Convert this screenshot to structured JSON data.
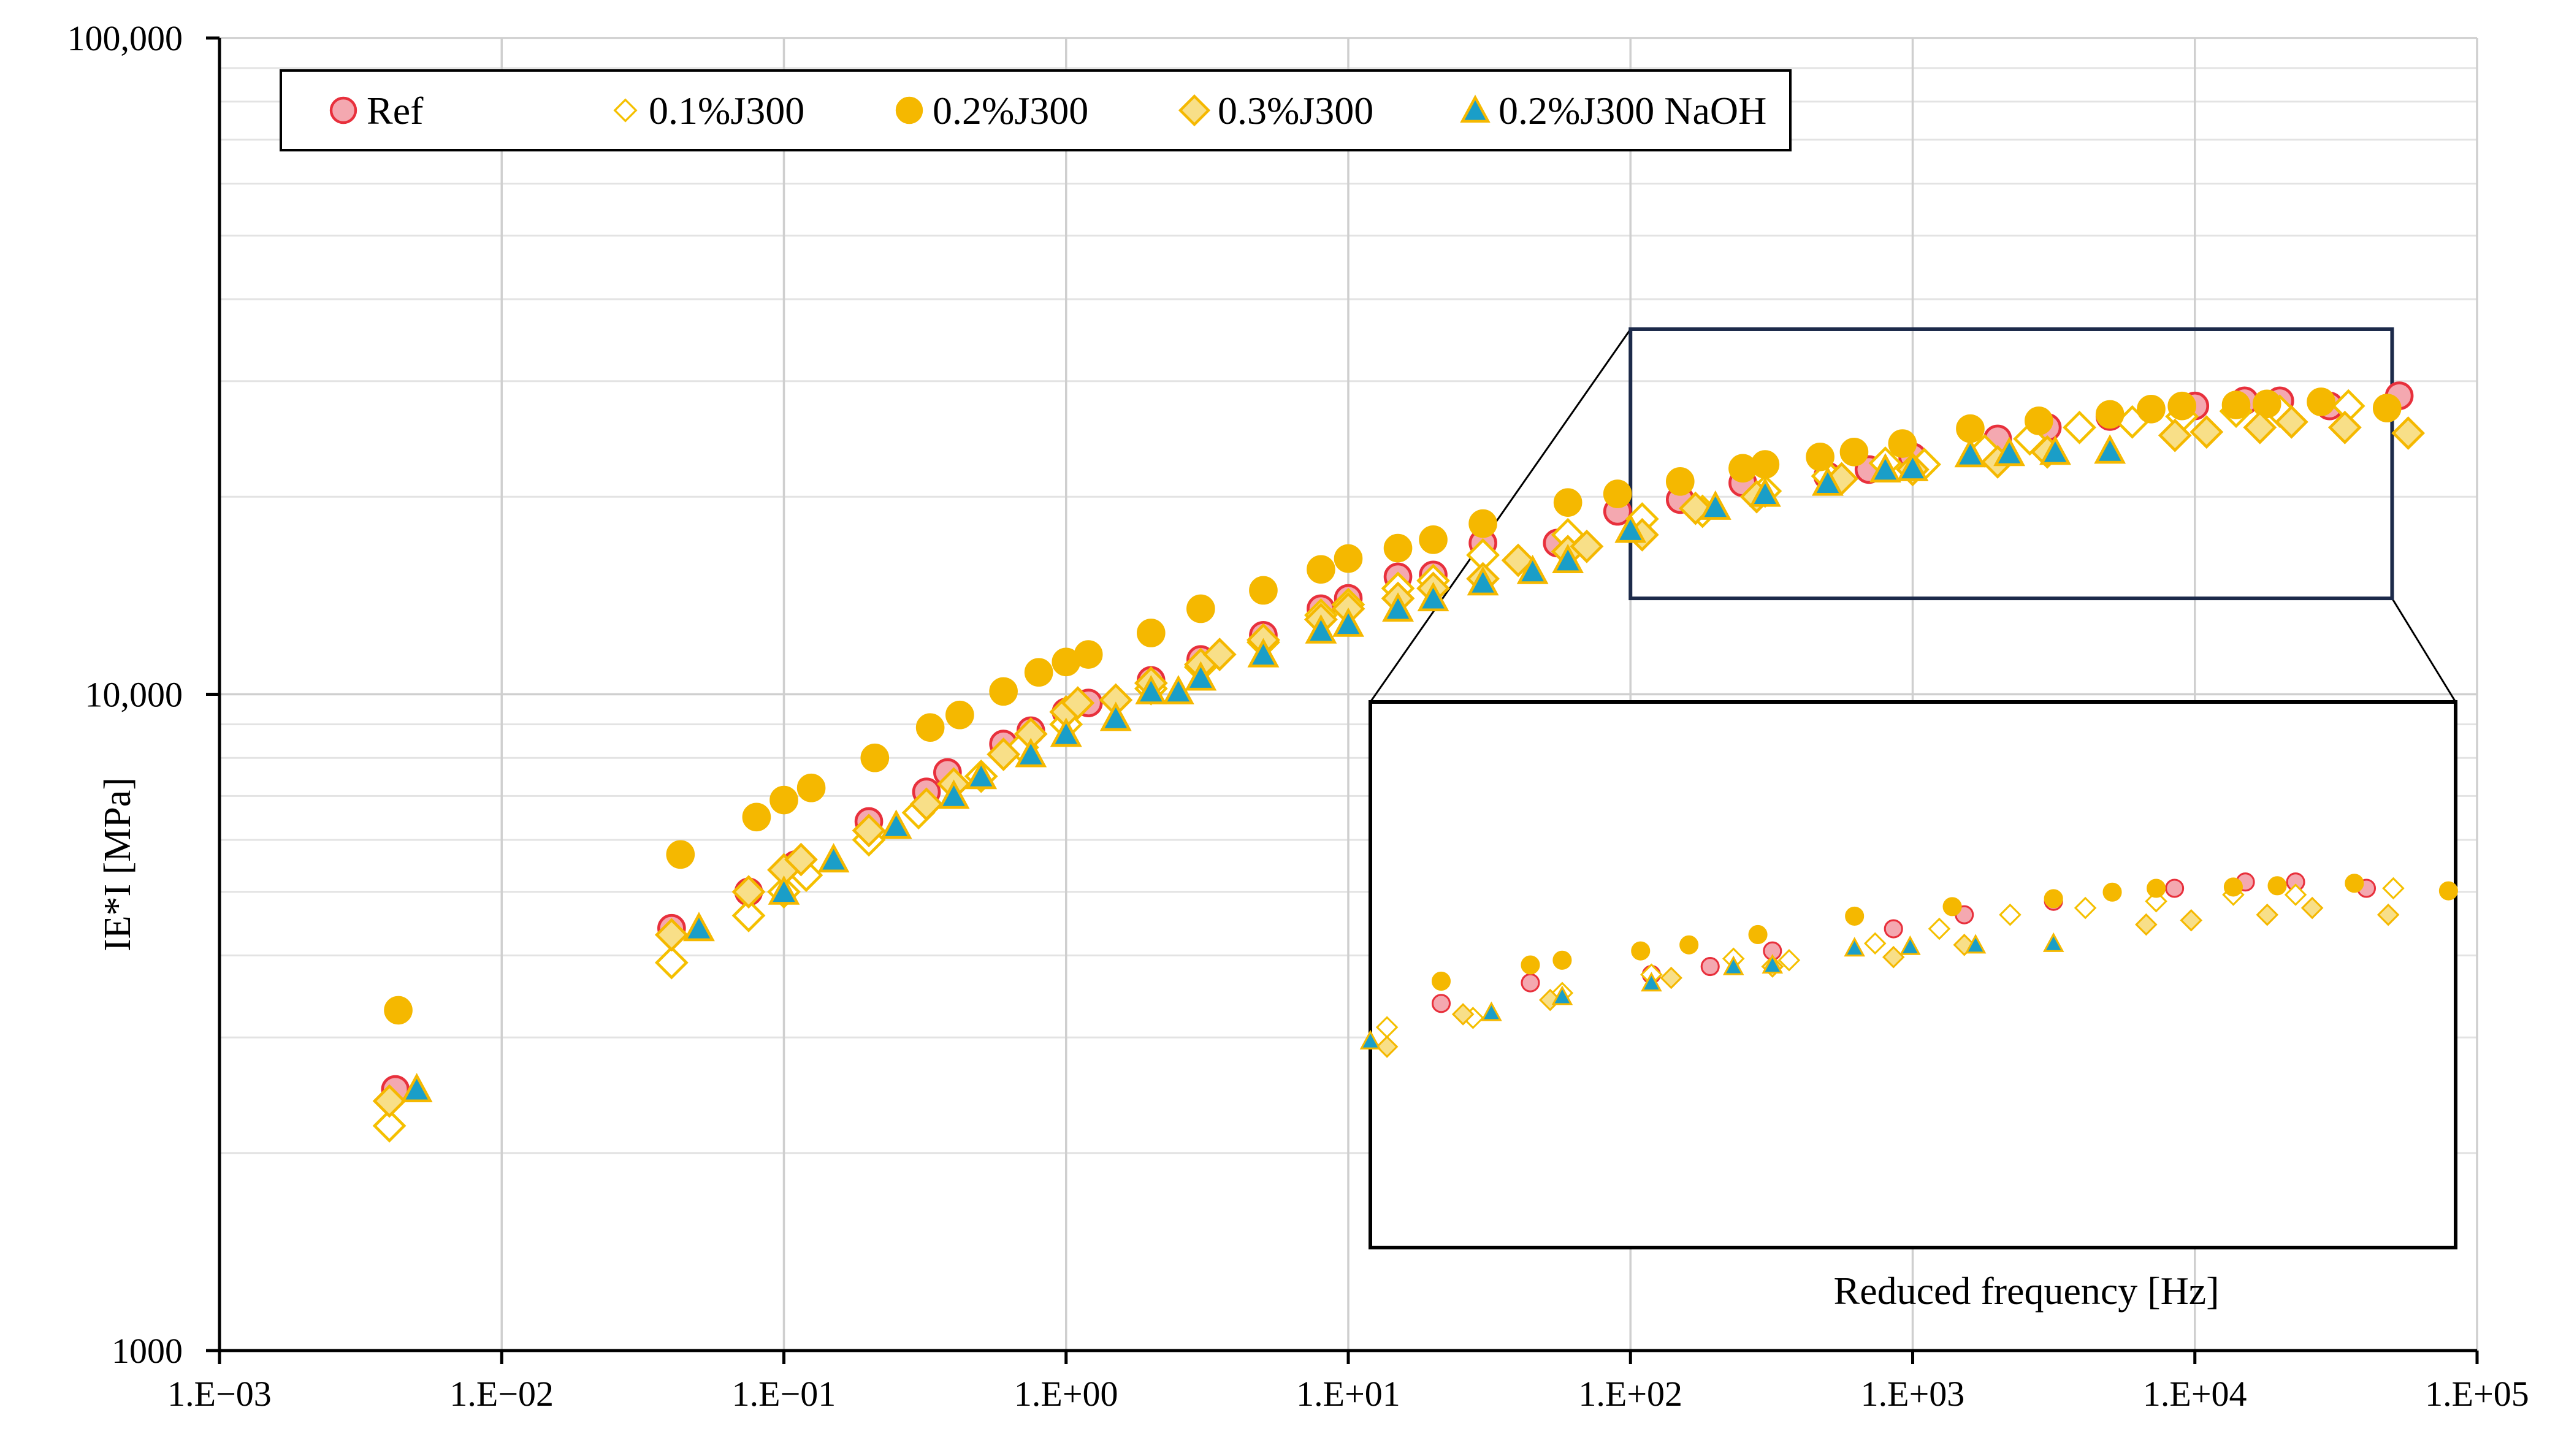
{
  "chart_data": {
    "type": "scatter",
    "title": "",
    "xlabel": "",
    "ylabel": "IE*I [MPa]",
    "x_scale": "log",
    "y_scale": "log",
    "xlim": [
      0.001,
      100000
    ],
    "ylim": [
      1000,
      100000
    ],
    "x_ticks": [
      0.001,
      0.01,
      0.1,
      1,
      10,
      100,
      1000,
      10000,
      100000
    ],
    "x_tick_labels": [
      "1.E−03",
      "1.E−02",
      "1.E−01",
      "1.E+00",
      "1.E+01",
      "1.E+02",
      "1.E+03",
      "1.E+04",
      "1.E+05"
    ],
    "y_ticks": [
      1000,
      10000,
      100000
    ],
    "y_tick_labels": [
      "1000",
      "10,000",
      "100,000"
    ],
    "grid": true,
    "legend_position": "top-left",
    "series": [
      {
        "name": "Ref",
        "marker": "circle",
        "fill": "#f4a8b0",
        "stroke": "#e8303c",
        "x": [
          0.0042,
          0.04,
          0.075,
          0.11,
          0.2,
          0.32,
          0.38,
          0.6,
          0.75,
          1.0,
          1.2,
          2.0,
          3.0,
          5.0,
          8.0,
          10,
          15,
          20,
          30,
          55,
          90,
          150,
          250,
          500,
          700,
          1000,
          2000,
          3000,
          5000,
          10000,
          15000,
          20000,
          30000,
          53000
        ],
        "y": [
          2500,
          4400,
          5000,
          5500,
          6400,
          7100,
          7600,
          8400,
          8800,
          9400,
          9700,
          10500,
          11300,
          12300,
          13500,
          14000,
          15100,
          15200,
          17000,
          17000,
          19000,
          19800,
          21000,
          21500,
          22000,
          23000,
          24500,
          25500,
          26500,
          27500,
          28000,
          28000,
          27500,
          28500
        ]
      },
      {
        "name": "0.1%J300",
        "marker": "diamond-open",
        "fill": "#ffffff",
        "stroke": "#f5c000",
        "x": [
          0.004,
          0.04,
          0.075,
          0.1,
          0.12,
          0.2,
          0.3,
          0.5,
          0.7,
          1.0,
          2.0,
          3.0,
          5.0,
          8.0,
          10,
          15,
          20,
          30,
          60,
          110,
          180,
          300,
          500,
          800,
          1100,
          1800,
          2600,
          3900,
          6000,
          9000,
          14000,
          20000,
          35000
        ],
        "y": [
          2200,
          3900,
          4600,
          5000,
          5300,
          6000,
          6600,
          7500,
          8300,
          9000,
          10200,
          11000,
          12000,
          13200,
          13700,
          14500,
          14900,
          16300,
          17500,
          18500,
          19000,
          20400,
          21500,
          22500,
          22400,
          23500,
          24500,
          25500,
          26000,
          26500,
          27000,
          27000,
          27500
        ]
      },
      {
        "name": "0.2%J300",
        "marker": "circle-filled",
        "fill": "#f5b800",
        "stroke": "#f5b800",
        "x": [
          0.0043,
          0.043,
          0.08,
          0.1,
          0.125,
          0.21,
          0.33,
          0.42,
          0.6,
          0.8,
          1.0,
          1.2,
          2.0,
          3.0,
          5.0,
          8.0,
          10,
          15,
          20,
          30,
          60,
          90,
          150,
          250,
          300,
          470,
          620,
          920,
          1600,
          2800,
          5000,
          7000,
          9000,
          14000,
          18000,
          28000,
          48000
        ],
        "y": [
          3300,
          5700,
          6500,
          6900,
          7200,
          8000,
          8900,
          9300,
          10100,
          10800,
          11200,
          11500,
          12400,
          13500,
          14400,
          15500,
          16100,
          16700,
          17200,
          18200,
          19600,
          20200,
          21100,
          22100,
          22400,
          23000,
          23400,
          24100,
          25400,
          26100,
          26700,
          27200,
          27500,
          27600,
          27700,
          27900,
          27300
        ]
      },
      {
        "name": "0.3%J300",
        "marker": "diamond-filled",
        "fill": "#f8df88",
        "stroke": "#f5b800",
        "x": [
          0.004,
          0.04,
          0.075,
          0.1,
          0.115,
          0.2,
          0.32,
          0.4,
          0.6,
          0.75,
          1.0,
          1.1,
          1.5,
          2.0,
          3.0,
          3.5,
          5.0,
          8.0,
          10,
          15,
          20,
          30,
          40,
          60,
          70,
          110,
          170,
          280,
          560,
          1000,
          2000,
          3000,
          8500,
          11000,
          17000,
          22000,
          34000,
          57000
        ],
        "y": [
          2400,
          4300,
          5000,
          5400,
          5600,
          6200,
          6800,
          7300,
          8100,
          8700,
          9400,
          9700,
          9800,
          10400,
          11100,
          11500,
          12100,
          13000,
          13500,
          14000,
          14500,
          15000,
          16000,
          16500,
          16800,
          17500,
          19200,
          20000,
          21300,
          22000,
          22600,
          23400,
          24800,
          25100,
          25500,
          26000,
          25500,
          25000
        ]
      },
      {
        "name": "0.2%J300 NaOH",
        "marker": "triangle",
        "fill": "#1a9ec8",
        "stroke": "#f5b800",
        "x": [
          0.005,
          0.05,
          0.1,
          0.15,
          0.25,
          0.4,
          0.5,
          0.75,
          1.0,
          1.5,
          2.0,
          2.5,
          3.0,
          5.0,
          8.0,
          10,
          15,
          20,
          30,
          45,
          60,
          100,
          200,
          300,
          500,
          800,
          1000,
          1600,
          2200,
          3200,
          5000
        ],
        "y": [
          2500,
          4400,
          5000,
          5600,
          6300,
          7000,
          7500,
          8100,
          8700,
          9200,
          10100,
          10100,
          10600,
          11500,
          12500,
          12800,
          13500,
          14000,
          14800,
          15400,
          16000,
          17800,
          19300,
          20200,
          21000,
          22000,
          22100,
          23200,
          23300,
          23400,
          23500
        ]
      }
    ],
    "annotations": {
      "inset_xlabel": "Reduced frequency [Hz]",
      "zoom_region": {
        "x_range": [
          100,
          50000
        ],
        "y_range": [
          14000,
          36000
        ]
      }
    }
  }
}
